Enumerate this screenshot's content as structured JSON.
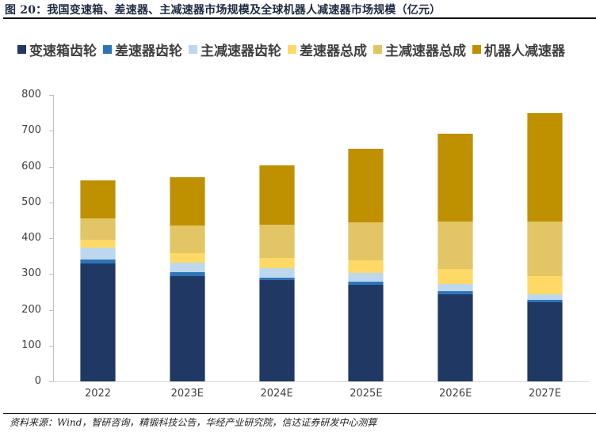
{
  "figure": {
    "title": "图 20：我国变速箱、差速器、主减速器市场规模及全球机器人减速器市场规模（亿元）",
    "source": "资料来源：Wind，智研咨询，精锻科技公告，华经产业研究院，信达证券研发中心测算"
  },
  "chart_data": {
    "type": "bar",
    "stacked": true,
    "title": "我国变速箱、差速器、主减速器市场规模及全球机器人减速器市场规模（亿元）",
    "xlabel": "",
    "ylabel": "",
    "ylim": [
      0,
      800
    ],
    "yticks": [
      0,
      100,
      200,
      300,
      400,
      500,
      600,
      700,
      800
    ],
    "grid": false,
    "legend_position": "top",
    "categories": [
      "2022",
      "2023E",
      "2024E",
      "2025E",
      "2026E",
      "2027E"
    ],
    "series": [
      {
        "name": "变速箱齿轮",
        "color": "#1f3864",
        "values": [
          330,
          295,
          282,
          270,
          244,
          222
        ]
      },
      {
        "name": "差速器齿轮",
        "color": "#2e75b6",
        "values": [
          11,
          9,
          8,
          8,
          7,
          6
        ]
      },
      {
        "name": "主减速器齿轮",
        "color": "#bdd7ee",
        "values": [
          32,
          27,
          25,
          24,
          20,
          16
        ]
      },
      {
        "name": "差速器总成",
        "color": "#ffd966",
        "values": [
          22,
          26,
          30,
          36,
          43,
          50
        ]
      },
      {
        "name": "主减速器总成",
        "color": "#e2c565",
        "values": [
          61,
          78,
          93,
          106,
          132,
          152
        ]
      },
      {
        "name": "机器人减速器",
        "color": "#bf9000",
        "values": [
          105,
          135,
          165,
          205,
          245,
          303
        ]
      }
    ]
  },
  "legend": [
    {
      "label": "变速箱齿轮",
      "color": "#1f3864"
    },
    {
      "label": "差速器齿轮",
      "color": "#2e75b6"
    },
    {
      "label": "主减速器齿轮",
      "color": "#bdd7ee"
    },
    {
      "label": "差速器总成",
      "color": "#ffd966"
    },
    {
      "label": "主减速器总成",
      "color": "#e2c565"
    },
    {
      "label": "机器人减速器",
      "color": "#bf9000"
    }
  ],
  "axis": {
    "y_ticks": [
      "0",
      "100",
      "200",
      "300",
      "400",
      "500",
      "600",
      "700",
      "800"
    ],
    "x_labels": [
      "2022",
      "2023E",
      "2024E",
      "2025E",
      "2026E",
      "2027E"
    ]
  }
}
